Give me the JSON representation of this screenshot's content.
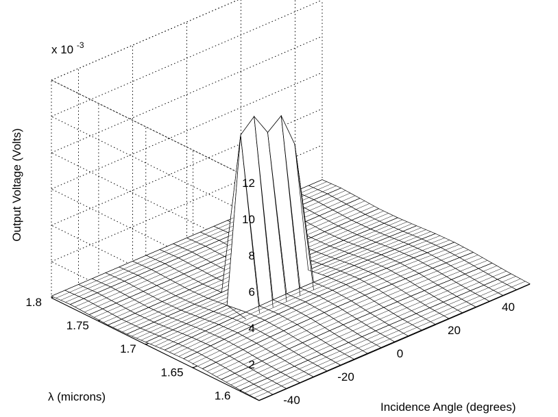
{
  "chart_data": {
    "type": "surface",
    "title": "",
    "xlabel": "Incidence Angle (degrees)",
    "ylabel": "λ (microns)",
    "zlabel": "Output Voltage (Volts)",
    "z_exponent_label": "x 10",
    "z_exponent_power": "-3",
    "x_ticks": [
      "-40",
      "-20",
      "0",
      "20",
      "40"
    ],
    "x_tick_values": [
      -40,
      -20,
      0,
      20,
      40
    ],
    "y_ticks": [
      "1.6",
      "1.65",
      "1.7",
      "1.75",
      "1.8"
    ],
    "y_tick_values": [
      1.6,
      1.65,
      1.7,
      1.75,
      1.8
    ],
    "z_ticks": [
      "2",
      "4",
      "6",
      "8",
      "10",
      "12"
    ],
    "z_tick_values": [
      2,
      4,
      6,
      8,
      10,
      12
    ],
    "xlim": [
      -50,
      50
    ],
    "ylim": [
      1.58,
      1.8
    ],
    "zlim": [
      0,
      12
    ],
    "z_units_scale": 0.001,
    "grid": true,
    "angles": [
      -50,
      -45,
      -40,
      -35,
      -30,
      -25,
      -20,
      -15,
      -10,
      -5,
      0,
      5,
      10,
      15,
      20,
      25,
      30,
      35,
      40,
      45,
      50
    ],
    "wavelengths": [
      1.58,
      1.6,
      1.62,
      1.64,
      1.66,
      1.68,
      1.7,
      1.72,
      1.74,
      1.76,
      1.78,
      1.8
    ],
    "peak_wavelength": 1.7,
    "peak_angles": [
      -15,
      -10,
      -5,
      0,
      5
    ],
    "peak_values": [
      9.3,
      10.0,
      8.8,
      9.4,
      7.5
    ],
    "baseline_max": 0.5
  }
}
